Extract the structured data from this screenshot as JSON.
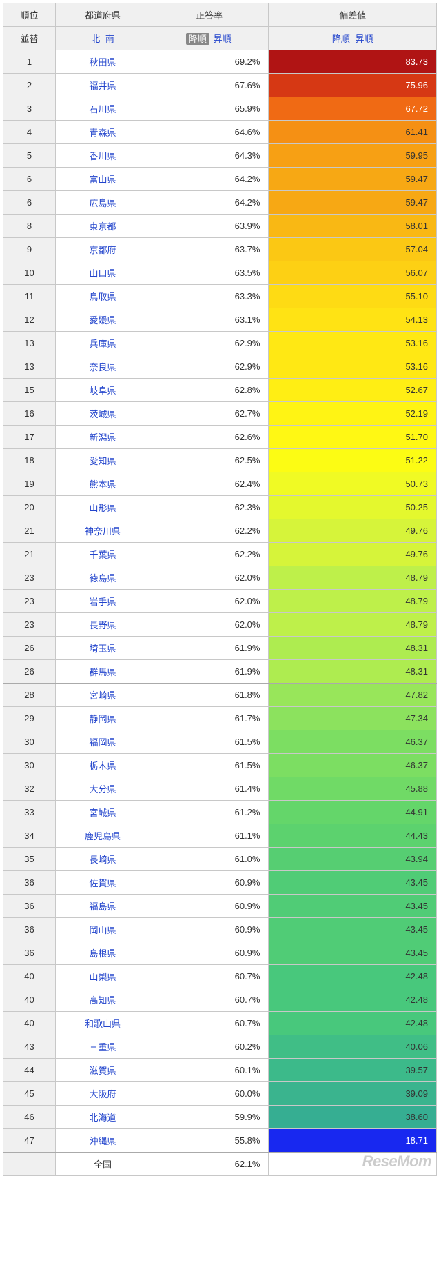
{
  "header": {
    "rank": "順位",
    "pref": "都道府県",
    "rate": "正答率",
    "dev": "偏差値"
  },
  "sort_row": {
    "label": "並替",
    "pref_north": "北",
    "pref_south": "南",
    "rate_desc": "降順",
    "rate_asc": "昇順",
    "dev_desc": "降順",
    "dev_asc": "昇順"
  },
  "rows": [
    {
      "rank": "1",
      "pref": "秋田県",
      "rate": "69.2%",
      "dev": "83.73",
      "bg": "#b01414",
      "fg": "#ffffff"
    },
    {
      "rank": "2",
      "pref": "福井県",
      "rate": "67.6%",
      "dev": "75.96",
      "bg": "#d63814",
      "fg": "#ffffff"
    },
    {
      "rank": "3",
      "pref": "石川県",
      "rate": "65.9%",
      "dev": "67.72",
      "bg": "#f06a14",
      "fg": "#ffffff"
    },
    {
      "rank": "4",
      "pref": "青森県",
      "rate": "64.6%",
      "dev": "61.41",
      "bg": "#f59014",
      "fg": "#333333"
    },
    {
      "rank": "5",
      "pref": "香川県",
      "rate": "64.3%",
      "dev": "59.95",
      "bg": "#f7a014",
      "fg": "#333333"
    },
    {
      "rank": "6",
      "pref": "富山県",
      "rate": "64.2%",
      "dev": "59.47",
      "bg": "#f7a814",
      "fg": "#333333"
    },
    {
      "rank": "6",
      "pref": "広島県",
      "rate": "64.2%",
      "dev": "59.47",
      "bg": "#f7a814",
      "fg": "#333333"
    },
    {
      "rank": "8",
      "pref": "東京都",
      "rate": "63.9%",
      "dev": "58.01",
      "bg": "#f9b814",
      "fg": "#333333"
    },
    {
      "rank": "9",
      "pref": "京都府",
      "rate": "63.7%",
      "dev": "57.04",
      "bg": "#fbc814",
      "fg": "#333333"
    },
    {
      "rank": "10",
      "pref": "山口県",
      "rate": "63.5%",
      "dev": "56.07",
      "bg": "#fdd014",
      "fg": "#333333"
    },
    {
      "rank": "11",
      "pref": "鳥取県",
      "rate": "63.3%",
      "dev": "55.10",
      "bg": "#fedb14",
      "fg": "#333333"
    },
    {
      "rank": "12",
      "pref": "愛媛県",
      "rate": "63.1%",
      "dev": "54.13",
      "bg": "#ffe314",
      "fg": "#333333"
    },
    {
      "rank": "13",
      "pref": "兵庫県",
      "rate": "62.9%",
      "dev": "53.16",
      "bg": "#ffe814",
      "fg": "#333333"
    },
    {
      "rank": "13",
      "pref": "奈良県",
      "rate": "62.9%",
      "dev": "53.16",
      "bg": "#ffe814",
      "fg": "#333333"
    },
    {
      "rank": "15",
      "pref": "岐阜県",
      "rate": "62.8%",
      "dev": "52.67",
      "bg": "#ffee14",
      "fg": "#333333"
    },
    {
      "rank": "16",
      "pref": "茨城県",
      "rate": "62.7%",
      "dev": "52.19",
      "bg": "#fff414",
      "fg": "#333333"
    },
    {
      "rank": "17",
      "pref": "新潟県",
      "rate": "62.6%",
      "dev": "51.70",
      "bg": "#fff814",
      "fg": "#333333"
    },
    {
      "rank": "18",
      "pref": "愛知県",
      "rate": "62.5%",
      "dev": "51.22",
      "bg": "#fcfc14",
      "fg": "#333333"
    },
    {
      "rank": "19",
      "pref": "熊本県",
      "rate": "62.4%",
      "dev": "50.73",
      "bg": "#f0fa24",
      "fg": "#333333"
    },
    {
      "rank": "20",
      "pref": "山形県",
      "rate": "62.3%",
      "dev": "50.25",
      "bg": "#e4f82e",
      "fg": "#333333"
    },
    {
      "rank": "21",
      "pref": "神奈川県",
      "rate": "62.2%",
      "dev": "49.76",
      "bg": "#d6f43a",
      "fg": "#333333"
    },
    {
      "rank": "21",
      "pref": "千葉県",
      "rate": "62.2%",
      "dev": "49.76",
      "bg": "#d6f43a",
      "fg": "#333333"
    },
    {
      "rank": "23",
      "pref": "徳島県",
      "rate": "62.0%",
      "dev": "48.79",
      "bg": "#bef04a",
      "fg": "#333333"
    },
    {
      "rank": "23",
      "pref": "岩手県",
      "rate": "62.0%",
      "dev": "48.79",
      "bg": "#bef04a",
      "fg": "#333333"
    },
    {
      "rank": "23",
      "pref": "長野県",
      "rate": "62.0%",
      "dev": "48.79",
      "bg": "#bef04a",
      "fg": "#333333"
    },
    {
      "rank": "26",
      "pref": "埼玉県",
      "rate": "61.9%",
      "dev": "48.31",
      "bg": "#aeec50",
      "fg": "#333333"
    },
    {
      "rank": "26",
      "pref": "群馬県",
      "rate": "61.9%",
      "dev": "48.31",
      "bg": "#aeec50",
      "fg": "#333333"
    },
    {
      "rank": "28",
      "pref": "宮崎県",
      "rate": "61.8%",
      "dev": "47.82",
      "bg": "#98e65a",
      "fg": "#333333",
      "divider": true
    },
    {
      "rank": "29",
      "pref": "静岡県",
      "rate": "61.7%",
      "dev": "47.34",
      "bg": "#8ce25e",
      "fg": "#333333"
    },
    {
      "rank": "30",
      "pref": "福岡県",
      "rate": "61.5%",
      "dev": "46.37",
      "bg": "#7cde62",
      "fg": "#333333"
    },
    {
      "rank": "30",
      "pref": "栃木県",
      "rate": "61.5%",
      "dev": "46.37",
      "bg": "#7cde62",
      "fg": "#333333"
    },
    {
      "rank": "32",
      "pref": "大分県",
      "rate": "61.4%",
      "dev": "45.88",
      "bg": "#70da66",
      "fg": "#333333"
    },
    {
      "rank": "33",
      "pref": "宮城県",
      "rate": "61.2%",
      "dev": "44.91",
      "bg": "#64d66a",
      "fg": "#333333"
    },
    {
      "rank": "34",
      "pref": "鹿児島県",
      "rate": "61.1%",
      "dev": "44.43",
      "bg": "#5cd26e",
      "fg": "#333333"
    },
    {
      "rank": "35",
      "pref": "長崎県",
      "rate": "61.0%",
      "dev": "43.94",
      "bg": "#56ce72",
      "fg": "#333333"
    },
    {
      "rank": "36",
      "pref": "佐賀県",
      "rate": "60.9%",
      "dev": "43.45",
      "bg": "#50cc76",
      "fg": "#333333"
    },
    {
      "rank": "36",
      "pref": "福島県",
      "rate": "60.9%",
      "dev": "43.45",
      "bg": "#50cc76",
      "fg": "#333333"
    },
    {
      "rank": "36",
      "pref": "岡山県",
      "rate": "60.9%",
      "dev": "43.45",
      "bg": "#50cc76",
      "fg": "#333333"
    },
    {
      "rank": "36",
      "pref": "島根県",
      "rate": "60.9%",
      "dev": "43.45",
      "bg": "#50cc76",
      "fg": "#333333"
    },
    {
      "rank": "40",
      "pref": "山梨県",
      "rate": "60.7%",
      "dev": "42.48",
      "bg": "#48c87c",
      "fg": "#333333"
    },
    {
      "rank": "40",
      "pref": "高知県",
      "rate": "60.7%",
      "dev": "42.48",
      "bg": "#48c87c",
      "fg": "#333333"
    },
    {
      "rank": "40",
      "pref": "和歌山県",
      "rate": "60.7%",
      "dev": "42.48",
      "bg": "#48c87c",
      "fg": "#333333"
    },
    {
      "rank": "43",
      "pref": "三重県",
      "rate": "60.2%",
      "dev": "40.06",
      "bg": "#40be86",
      "fg": "#333333"
    },
    {
      "rank": "44",
      "pref": "滋賀県",
      "rate": "60.1%",
      "dev": "39.57",
      "bg": "#3cba8a",
      "fg": "#333333"
    },
    {
      "rank": "45",
      "pref": "大阪府",
      "rate": "60.0%",
      "dev": "39.09",
      "bg": "#3ab48e",
      "fg": "#333333"
    },
    {
      "rank": "46",
      "pref": "北海道",
      "rate": "59.9%",
      "dev": "38.60",
      "bg": "#36ae92",
      "fg": "#333333"
    },
    {
      "rank": "47",
      "pref": "沖縄県",
      "rate": "55.8%",
      "dev": "18.71",
      "bg": "#1828f0",
      "fg": "#ffffff"
    }
  ],
  "total": {
    "pref": "全国",
    "rate": "62.1%"
  },
  "watermark": "ReseMom"
}
